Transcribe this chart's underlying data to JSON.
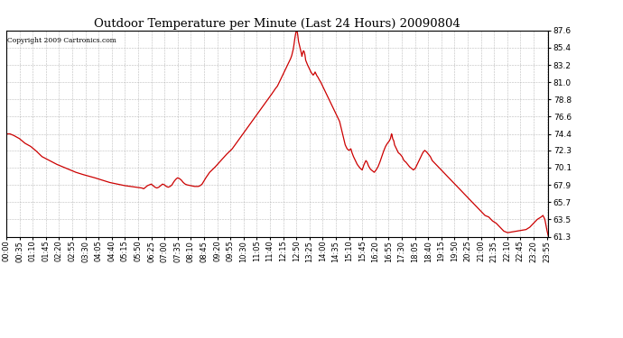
{
  "title": "Outdoor Temperature per Minute (Last 24 Hours) 20090804",
  "copyright_text": "Copyright 2009 Cartronics.com",
  "line_color": "#cc0000",
  "background_color": "#ffffff",
  "grid_color": "#aaaaaa",
  "ylim": [
    61.3,
    87.6
  ],
  "yticks": [
    61.3,
    63.5,
    65.7,
    67.9,
    70.1,
    72.3,
    74.4,
    76.6,
    78.8,
    81.0,
    83.2,
    85.4,
    87.6
  ],
  "xtick_labels": [
    "00:00",
    "00:35",
    "01:10",
    "01:45",
    "02:20",
    "02:55",
    "03:30",
    "04:05",
    "04:40",
    "05:15",
    "05:50",
    "06:25",
    "07:00",
    "07:35",
    "08:10",
    "08:45",
    "09:20",
    "09:55",
    "10:30",
    "11:05",
    "11:40",
    "12:15",
    "12:50",
    "13:25",
    "14:00",
    "14:35",
    "15:10",
    "15:45",
    "16:20",
    "16:55",
    "17:30",
    "18:05",
    "18:40",
    "19:15",
    "19:50",
    "20:25",
    "21:00",
    "21:35",
    "22:10",
    "22:45",
    "23:20",
    "23:55"
  ],
  "data_points": [
    [
      0,
      74.4
    ],
    [
      10,
      74.4
    ],
    [
      20,
      74.2
    ],
    [
      35,
      73.8
    ],
    [
      50,
      73.2
    ],
    [
      65,
      72.8
    ],
    [
      80,
      72.2
    ],
    [
      95,
      71.5
    ],
    [
      115,
      71.0
    ],
    [
      135,
      70.5
    ],
    [
      155,
      70.1
    ],
    [
      170,
      69.8
    ],
    [
      185,
      69.5
    ],
    [
      205,
      69.2
    ],
    [
      220,
      69.0
    ],
    [
      235,
      68.8
    ],
    [
      255,
      68.5
    ],
    [
      275,
      68.2
    ],
    [
      295,
      68.0
    ],
    [
      315,
      67.8
    ],
    [
      330,
      67.7
    ],
    [
      345,
      67.6
    ],
    [
      360,
      67.5
    ],
    [
      365,
      67.4
    ],
    [
      370,
      67.6
    ],
    [
      375,
      67.8
    ],
    [
      380,
      67.9
    ],
    [
      385,
      68.0
    ],
    [
      390,
      67.8
    ],
    [
      395,
      67.6
    ],
    [
      400,
      67.5
    ],
    [
      405,
      67.6
    ],
    [
      410,
      67.8
    ],
    [
      415,
      68.0
    ],
    [
      420,
      67.9
    ],
    [
      425,
      67.7
    ],
    [
      430,
      67.6
    ],
    [
      435,
      67.7
    ],
    [
      440,
      67.9
    ],
    [
      445,
      68.3
    ],
    [
      450,
      68.6
    ],
    [
      455,
      68.8
    ],
    [
      460,
      68.7
    ],
    [
      465,
      68.5
    ],
    [
      470,
      68.2
    ],
    [
      475,
      68.0
    ],
    [
      480,
      67.9
    ],
    [
      490,
      67.8
    ],
    [
      500,
      67.7
    ],
    [
      510,
      67.7
    ],
    [
      515,
      67.8
    ],
    [
      520,
      68.0
    ],
    [
      525,
      68.4
    ],
    [
      530,
      68.8
    ],
    [
      540,
      69.5
    ],
    [
      555,
      70.2
    ],
    [
      570,
      71.0
    ],
    [
      585,
      71.8
    ],
    [
      600,
      72.5
    ],
    [
      615,
      73.5
    ],
    [
      630,
      74.5
    ],
    [
      645,
      75.5
    ],
    [
      660,
      76.5
    ],
    [
      675,
      77.5
    ],
    [
      690,
      78.5
    ],
    [
      705,
      79.5
    ],
    [
      715,
      80.2
    ],
    [
      720,
      80.5
    ],
    [
      725,
      81.0
    ],
    [
      730,
      81.5
    ],
    [
      735,
      82.0
    ],
    [
      740,
      82.5
    ],
    [
      745,
      83.0
    ],
    [
      750,
      83.5
    ],
    [
      755,
      84.0
    ],
    [
      758,
      84.4
    ],
    [
      760,
      84.8
    ],
    [
      762,
      85.2
    ],
    [
      763,
      85.5
    ],
    [
      764,
      85.8
    ],
    [
      765,
      86.2
    ],
    [
      766,
      86.5
    ],
    [
      767,
      86.8
    ],
    [
      768,
      87.1
    ],
    [
      769,
      87.3
    ],
    [
      770,
      87.5
    ],
    [
      771,
      87.55
    ],
    [
      772,
      87.5
    ],
    [
      773,
      87.3
    ],
    [
      774,
      87.0
    ],
    [
      775,
      86.6
    ],
    [
      776,
      86.2
    ],
    [
      778,
      85.8
    ],
    [
      780,
      85.4
    ],
    [
      782,
      85.0
    ],
    [
      784,
      84.6
    ],
    [
      785,
      84.3
    ],
    [
      787,
      84.7
    ],
    [
      789,
      85.0
    ],
    [
      791,
      84.9
    ],
    [
      793,
      84.5
    ],
    [
      795,
      83.8
    ],
    [
      800,
      83.2
    ],
    [
      805,
      82.7
    ],
    [
      810,
      82.2
    ],
    [
      815,
      81.9
    ],
    [
      818,
      82.1
    ],
    [
      820,
      82.3
    ],
    [
      822,
      82.1
    ],
    [
      825,
      81.8
    ],
    [
      828,
      81.6
    ],
    [
      830,
      81.4
    ],
    [
      835,
      81.0
    ],
    [
      840,
      80.5
    ],
    [
      845,
      80.0
    ],
    [
      850,
      79.5
    ],
    [
      855,
      79.0
    ],
    [
      860,
      78.5
    ],
    [
      865,
      78.0
    ],
    [
      870,
      77.5
    ],
    [
      875,
      77.0
    ],
    [
      880,
      76.5
    ],
    [
      885,
      76.0
    ],
    [
      890,
      75.0
    ],
    [
      895,
      74.0
    ],
    [
      900,
      73.0
    ],
    [
      905,
      72.5
    ],
    [
      910,
      72.3
    ],
    [
      915,
      72.5
    ],
    [
      918,
      72.0
    ],
    [
      922,
      71.5
    ],
    [
      927,
      71.0
    ],
    [
      932,
      70.5
    ],
    [
      937,
      70.2
    ],
    [
      940,
      70.0
    ],
    [
      945,
      69.8
    ],
    [
      950,
      70.5
    ],
    [
      955,
      71.0
    ],
    [
      958,
      70.8
    ],
    [
      962,
      70.3
    ],
    [
      967,
      69.9
    ],
    [
      972,
      69.7
    ],
    [
      977,
      69.5
    ],
    [
      982,
      69.8
    ],
    [
      987,
      70.2
    ],
    [
      992,
      70.8
    ],
    [
      997,
      71.5
    ],
    [
      1002,
      72.2
    ],
    [
      1007,
      72.8
    ],
    [
      1012,
      73.2
    ],
    [
      1017,
      73.5
    ],
    [
      1020,
      73.8
    ],
    [
      1022,
      74.2
    ],
    [
      1023,
      74.4
    ],
    [
      1024,
      74.3
    ],
    [
      1026,
      73.8
    ],
    [
      1029,
      73.5
    ],
    [
      1031,
      73.0
    ],
    [
      1036,
      72.5
    ],
    [
      1041,
      72.0
    ],
    [
      1046,
      71.8
    ],
    [
      1051,
      71.5
    ],
    [
      1056,
      71.0
    ],
    [
      1061,
      70.8
    ],
    [
      1066,
      70.5
    ],
    [
      1071,
      70.2
    ],
    [
      1076,
      70.0
    ],
    [
      1081,
      69.8
    ],
    [
      1086,
      70.0
    ],
    [
      1091,
      70.5
    ],
    [
      1096,
      71.0
    ],
    [
      1101,
      71.5
    ],
    [
      1106,
      72.0
    ],
    [
      1111,
      72.3
    ],
    [
      1116,
      72.1
    ],
    [
      1121,
      71.8
    ],
    [
      1126,
      71.5
    ],
    [
      1131,
      71.0
    ],
    [
      1141,
      70.5
    ],
    [
      1151,
      70.0
    ],
    [
      1161,
      69.5
    ],
    [
      1171,
      69.0
    ],
    [
      1181,
      68.5
    ],
    [
      1191,
      68.0
    ],
    [
      1201,
      67.5
    ],
    [
      1211,
      67.0
    ],
    [
      1221,
      66.5
    ],
    [
      1231,
      66.0
    ],
    [
      1241,
      65.5
    ],
    [
      1251,
      65.0
    ],
    [
      1261,
      64.5
    ],
    [
      1271,
      64.0
    ],
    [
      1281,
      63.8
    ],
    [
      1291,
      63.3
    ],
    [
      1301,
      63.0
    ],
    [
      1311,
      62.5
    ],
    [
      1321,
      62.0
    ],
    [
      1331,
      61.8
    ],
    [
      1380,
      62.2
    ],
    [
      1390,
      62.5
    ],
    [
      1400,
      63.0
    ],
    [
      1410,
      63.5
    ],
    [
      1420,
      63.8
    ],
    [
      1425,
      64.0
    ],
    [
      1430,
      63.5
    ],
    [
      1432,
      63.0
    ],
    [
      1434,
      62.5
    ],
    [
      1436,
      62.0
    ],
    [
      1438,
      61.6
    ],
    [
      1439,
      61.4
    ]
  ]
}
